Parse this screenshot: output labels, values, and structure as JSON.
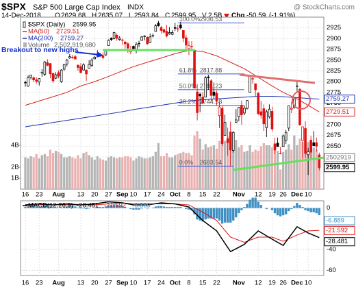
{
  "chart_data": {
    "type": "candlestick",
    "title": "$SPX",
    "subtitle": "S&P 500 Large Cap Index",
    "exchange": "INDX",
    "source": "@ StockCharts.com",
    "header": {
      "date": "14-Dec-2018",
      "open": "O",
      "high": "H",
      "low": "L",
      "close": "C",
      "volume": "V",
      "volume_value": "2.5B",
      "change": "Chg",
      "change_value": -50.59,
      "change_pct": "(-1.91%)"
    },
    "price_name": "$SPX (Daily)",
    "annotation": "Breakout to new highs",
    "grid": true,
    "ylim": [
      2550,
      2950
    ],
    "yticks": [
      2625,
      2650,
      2675,
      2700,
      2725,
      2750,
      2775,
      2800,
      2825,
      2850,
      2875,
      2900,
      2925
    ],
    "xticks": [
      {
        "value": 0,
        "label": "16"
      },
      {
        "value": 5,
        "label": "23"
      },
      {
        "value": 12,
        "label": "Aug"
      },
      {
        "value": 20,
        "label": "13"
      },
      {
        "value": 25,
        "label": "20"
      },
      {
        "value": 30,
        "label": "27"
      },
      {
        "value": 35,
        "label": "Sep"
      },
      {
        "value": 39,
        "label": "10"
      },
      {
        "value": 44,
        "label": "17"
      },
      {
        "value": 49,
        "label": "24"
      },
      {
        "value": 54,
        "label": "Oct"
      },
      {
        "value": 59,
        "label": "8"
      },
      {
        "value": 64,
        "label": "15"
      },
      {
        "value": 69,
        "label": "22"
      },
      {
        "value": 77,
        "label": "Nov"
      },
      {
        "value": 84,
        "label": "12"
      },
      {
        "value": 89,
        "label": "19"
      },
      {
        "value": 93,
        "label": "26"
      },
      {
        "value": 98,
        "label": "Dec"
      },
      {
        "value": 102,
        "label": "10"
      }
    ],
    "candle_up_color": "#000000",
    "candle_down_color": "#e01010",
    "candles": [
      [
        2797,
        2802,
        2788,
        2798
      ],
      [
        2790,
        2815,
        2788,
        2809
      ],
      [
        2810,
        2816,
        2805,
        2815
      ],
      [
        2809,
        2812,
        2799,
        2804
      ],
      [
        2804,
        2810,
        2795,
        2801
      ],
      [
        2799,
        2808,
        2791,
        2807
      ],
      [
        2820,
        2829,
        2811,
        2821
      ],
      [
        2817,
        2848,
        2813,
        2846
      ],
      [
        2844,
        2852,
        2836,
        2838
      ],
      [
        2842,
        2843,
        2808,
        2818
      ],
      [
        2819,
        2821,
        2797,
        2802
      ],
      [
        2808,
        2822,
        2806,
        2816
      ],
      [
        2821,
        2826,
        2808,
        2813
      ],
      [
        2800,
        2829,
        2797,
        2827
      ],
      [
        2829,
        2841,
        2825,
        2840
      ],
      [
        2841,
        2853,
        2835,
        2850
      ],
      [
        2855,
        2864,
        2853,
        2858
      ],
      [
        2856,
        2862,
        2853,
        2857
      ],
      [
        2858,
        2862,
        2851,
        2853
      ],
      [
        2838,
        2840,
        2825,
        2833
      ],
      [
        2835,
        2843,
        2819,
        2821
      ],
      [
        2827,
        2843,
        2826,
        2839
      ],
      [
        2827,
        2828,
        2802,
        2818
      ],
      [
        2831,
        2850,
        2831,
        2840
      ],
      [
        2838,
        2855,
        2834,
        2850
      ],
      [
        2853,
        2860,
        2852,
        2857
      ],
      [
        2861,
        2873,
        2861,
        2862
      ],
      [
        2860,
        2867,
        2857,
        2861
      ],
      [
        2860,
        2868,
        2852,
        2856
      ],
      [
        2862,
        2876,
        2860,
        2874
      ],
      [
        2884,
        2898,
        2884,
        2896
      ],
      [
        2901,
        2903,
        2894,
        2898
      ],
      [
        2900,
        2916,
        2898,
        2914
      ],
      [
        2908,
        2912,
        2895,
        2901
      ],
      [
        2898,
        2906,
        2895,
        2901
      ],
      [
        2897,
        2900,
        2886,
        2896
      ],
      [
        2892,
        2895,
        2877,
        2888
      ],
      [
        2888,
        2892,
        2867,
        2878
      ],
      [
        2869,
        2883,
        2864,
        2872
      ],
      [
        2882,
        2884,
        2872,
        2877
      ],
      [
        2872,
        2892,
        2866,
        2887
      ],
      [
        2889,
        2895,
        2880,
        2888
      ],
      [
        2896,
        2906,
        2895,
        2904
      ],
      [
        2906,
        2908,
        2896,
        2905
      ],
      [
        2903,
        2905,
        2886,
        2888
      ],
      [
        2891,
        2912,
        2890,
        2904
      ],
      [
        2906,
        2912,
        2903,
        2907
      ],
      [
        2917,
        2934,
        2917,
        2930
      ],
      [
        2936,
        2941,
        2928,
        2930
      ],
      [
        2926,
        2929,
        2912,
        2919
      ],
      [
        2921,
        2923,
        2912,
        2915
      ],
      [
        2917,
        2932,
        2903,
        2906
      ],
      [
        2911,
        2927,
        2909,
        2914
      ],
      [
        2910,
        2920,
        2908,
        2914
      ],
      [
        2926,
        2937,
        2918,
        2924
      ],
      [
        2923,
        2932,
        2915,
        2923
      ],
      [
        2932,
        2939,
        2921,
        2925
      ],
      [
        2919,
        2920,
        2892,
        2901
      ],
      [
        2902,
        2909,
        2869,
        2885
      ],
      [
        2877,
        2894,
        2862,
        2884
      ],
      [
        2882,
        2894,
        2874,
        2881
      ],
      [
        2873,
        2875,
        2784,
        2785
      ],
      [
        2776,
        2795,
        2710,
        2728
      ],
      [
        2771,
        2775,
        2729,
        2767
      ],
      [
        2764,
        2776,
        2750,
        2750
      ],
      [
        2764,
        2813,
        2764,
        2809
      ],
      [
        2811,
        2816,
        2781,
        2809
      ],
      [
        2802,
        2806,
        2755,
        2768
      ],
      [
        2776,
        2798,
        2760,
        2768
      ],
      [
        2773,
        2779,
        2745,
        2756
      ],
      [
        2721,
        2753,
        2692,
        2741
      ],
      [
        2738,
        2743,
        2651,
        2656
      ],
      [
        2675,
        2723,
        2675,
        2705
      ],
      [
        2667,
        2693,
        2628,
        2658
      ],
      [
        2683,
        2707,
        2604,
        2641
      ],
      [
        2640,
        2685,
        2635,
        2682
      ],
      [
        2705,
        2736,
        2705,
        2711
      ],
      [
        2718,
        2741,
        2708,
        2740
      ],
      [
        2745,
        2756,
        2700,
        2723
      ],
      [
        2727,
        2744,
        2722,
        2738
      ],
      [
        2738,
        2757,
        2735,
        2756
      ],
      [
        2775,
        2815,
        2775,
        2814
      ],
      [
        2807,
        2814,
        2795,
        2806
      ],
      [
        2795,
        2796,
        2766,
        2781
      ],
      [
        2773,
        2775,
        2722,
        2726
      ],
      [
        2730,
        2755,
        2714,
        2722
      ],
      [
        2737,
        2747,
        2685,
        2702
      ],
      [
        2693,
        2735,
        2671,
        2730
      ],
      [
        2718,
        2747,
        2714,
        2736
      ],
      [
        2731,
        2742,
        2684,
        2690
      ],
      [
        2655,
        2670,
        2632,
        2641
      ],
      [
        2657,
        2670,
        2649,
        2649
      ],
      [
        2633,
        2648,
        2631,
        2633
      ],
      [
        2649,
        2677,
        2649,
        2674
      ],
      [
        2664,
        2688,
        2655,
        2682
      ],
      [
        2692,
        2744,
        2685,
        2744
      ],
      [
        2736,
        2753,
        2727,
        2738
      ],
      [
        2740,
        2760,
        2737,
        2760
      ],
      [
        2790,
        2800,
        2774,
        2790
      ],
      [
        2782,
        2785,
        2697,
        2700
      ],
      [
        2663,
        2696,
        2621,
        2695
      ],
      [
        2691,
        2708,
        2623,
        2633
      ],
      [
        2630,
        2646,
        2583,
        2637
      ],
      [
        2664,
        2674,
        2621,
        2636
      ],
      [
        2658,
        2685,
        2650,
        2651
      ],
      [
        2658,
        2670,
        2637,
        2650
      ],
      [
        2629.68,
        2635.07,
        2593.84,
        2599.95
      ]
    ],
    "volume": {
      "name": "Volume",
      "value_label": "2,502,919,680",
      "tag": "2502919",
      "up_color": "#b4b4b4",
      "down_color": "#eab0b0",
      "yticks": [
        {
          "value": 1,
          "label": "1B"
        },
        {
          "value": 2,
          "label": "2B"
        },
        {
          "value": 4,
          "label": "4B"
        }
      ],
      "values": [
        2.9,
        2.8,
        3.0,
        2.9,
        3.2,
        2.8,
        3.1,
        3.2,
        3.0,
        3.6,
        3.3,
        3.5,
        3.4,
        3.2,
        2.9,
        2.9,
        3.0,
        2.9,
        2.8,
        3.1,
        2.8,
        3.3,
        3.4,
        3.1,
        2.9,
        2.7,
        3.0,
        2.8,
        2.7,
        2.6,
        2.9,
        3.0,
        2.9,
        2.8,
        2.9,
        2.9,
        3.0,
        3.0,
        2.9,
        2.6,
        2.8,
        3.0,
        2.9,
        2.8,
        2.8,
        2.9,
        3.0,
        3.4,
        4.2,
        3.0,
        3.0,
        3.3,
        2.9,
        2.9,
        3.1,
        3.2,
        3.3,
        3.4,
        3.3,
        3.3,
        3.1,
        4.9,
        5.3,
        4.6,
        3.6,
        4.1,
        3.8,
        3.9,
        4.0,
        3.7,
        4.4,
        4.6,
        4.4,
        4.8,
        4.0,
        4.3,
        4.5,
        3.8,
        4.0,
        3.4,
        3.5,
        4.0,
        3.4,
        3.6,
        3.5,
        3.9,
        4.2,
        4.0,
        4.0,
        3.8,
        4.2,
        3.5,
        1.8,
        3.4,
        3.6,
        4.1,
        3.6,
        4.9,
        4.0,
        4.6,
        4.3,
        4.1,
        4.3,
        4.2,
        3.8,
        3.6,
        2.50291968
      ]
    },
    "x": [
      0,
      5,
      10,
      15,
      20,
      25,
      30,
      35,
      39,
      44,
      49,
      54,
      59,
      64,
      69,
      74,
      79,
      84,
      89,
      93,
      98,
      102,
      106
    ],
    "ma": [
      {
        "name": "MA(50)",
        "color": "#d62020",
        "values": [
          2745,
          2755,
          2765,
          2775,
          2790,
          2800,
          2812,
          2825,
          2835,
          2845,
          2855,
          2865,
          2873,
          2870,
          2860,
          2845,
          2830,
          2810,
          2790,
          2775,
          2760,
          2745,
          2729.51
        ]
      },
      {
        "name": "MA(200)",
        "color": "#1a2fb0",
        "values": [
          2695,
          2700,
          2705,
          2710,
          2715,
          2720,
          2725,
          2730,
          2735,
          2740,
          2745,
          2750,
          2755,
          2758,
          2760,
          2762,
          2764,
          2766,
          2766,
          2765,
          2763,
          2761,
          2759.27
        ]
      }
    ],
    "fib": [
      {
        "label": "100.0%",
        "value": 2936.53
      },
      {
        "label": "61.8%",
        "value": 2817.88
      },
      {
        "label": "50.0%",
        "value": 2781.23
      },
      {
        "label": "38.2%",
        "value": 2744.58
      },
      {
        "label": "0.0%",
        "value": 2603.54
      }
    ],
    "fib_color": "#3050d0",
    "macd": {
      "name": "MACD(12,26,9)",
      "ylim": [
        -65,
        7
      ],
      "yticks": [
        -60,
        -40,
        0
      ],
      "line": {
        "color": "#000000",
        "values": [
          3,
          4,
          3,
          4,
          3,
          4,
          6,
          5,
          3,
          3,
          5,
          4,
          1,
          -12,
          -22,
          -42,
          -35,
          -22,
          -30,
          -36,
          -18,
          -24,
          -28.481
        ]
      },
      "signal": {
        "color": "#e01010",
        "values": [
          2,
          3,
          3,
          3,
          3,
          3,
          4,
          5,
          4,
          4,
          4,
          4,
          3,
          -4,
          -12,
          -28,
          -33,
          -28,
          -28,
          -32,
          -26,
          -22,
          -21.592
        ]
      },
      "histogram": {
        "color": "#3d8fc4",
        "values": [
          1,
          1.5,
          2,
          2,
          1.5,
          1,
          1.5,
          2.5,
          2.5,
          1.5,
          0.5,
          0.5,
          0,
          0.5,
          1,
          1.5,
          2,
          2,
          1.5,
          0.5,
          -0.5,
          -0.5,
          -1,
          -0.5,
          0,
          0.5,
          1,
          1,
          1,
          1.5,
          2.5,
          3,
          3.5,
          3,
          2.5,
          2,
          1,
          0,
          -1,
          -1.5,
          -1.5,
          -1.5,
          -0.5,
          0,
          -0.5,
          0,
          0.5,
          1.5,
          2,
          2,
          1.5,
          1,
          1,
          1,
          1,
          1,
          1,
          0,
          -1,
          -1.5,
          -2,
          -6,
          -11,
          -12,
          -13,
          -11,
          -10,
          -10,
          -10,
          -10,
          -12,
          -15,
          -14,
          -14,
          -14,
          -12,
          -9,
          -5,
          -2,
          1,
          4,
          8,
          10,
          10,
          6,
          3,
          0,
          -1,
          0,
          -2,
          -5,
          -7,
          -8,
          -7,
          -6,
          -3,
          -1,
          2,
          5,
          3,
          1,
          -2,
          -3,
          -4,
          -4,
          -5,
          -6.889
        ]
      }
    }
  }
}
